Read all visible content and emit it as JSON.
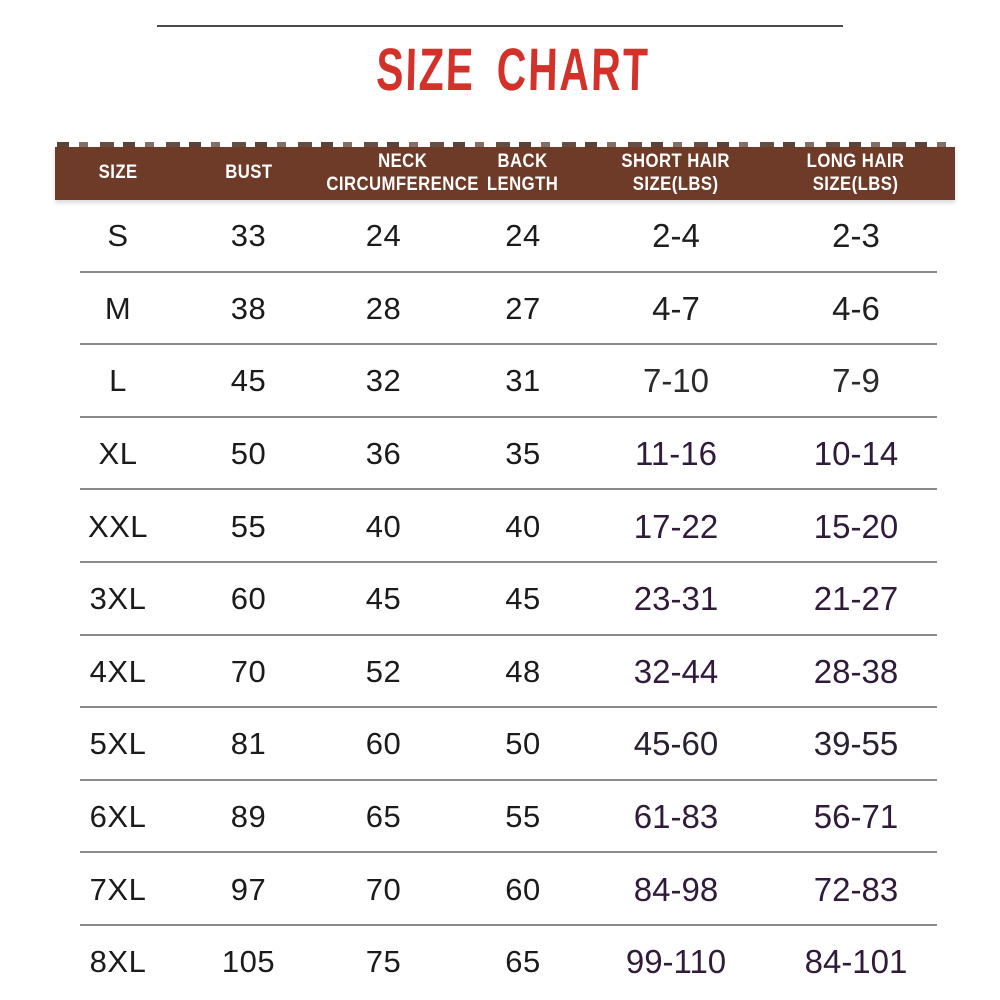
{
  "title": {
    "text": "SIZE CHART",
    "color": "#d2322a"
  },
  "decor": {
    "top_line_color": "#4c4c4c"
  },
  "table": {
    "header_bg": "#6e3b28",
    "header_text_color": "#ffffff",
    "separator_color": "#8b8b8b",
    "body_text_color": "#1b1b1b",
    "hair_purple_color": "#301b3a",
    "columns": [
      {
        "key": "size",
        "label": "SIZE"
      },
      {
        "key": "bust",
        "label": "BUST"
      },
      {
        "key": "neck",
        "label": "NECK\nCIRCUMFERENCE"
      },
      {
        "key": "back",
        "label": "BACK\nLENGTH"
      },
      {
        "key": "short_hair",
        "label": "SHORT HAIR\nSIZE(LBS)"
      },
      {
        "key": "long_hair",
        "label": "LONG HAIR\nSIZE(LBS)"
      }
    ],
    "rows": [
      {
        "size": "S",
        "bust": "33",
        "neck": "24",
        "back": "24",
        "short_hair": "2-4",
        "long_hair": "2-3",
        "hair_color": "#1f1f1f"
      },
      {
        "size": "M",
        "bust": "38",
        "neck": "28",
        "back": "27",
        "short_hair": "4-7",
        "long_hair": "4-6",
        "hair_color": "#1f1f1f"
      },
      {
        "size": "L",
        "bust": "45",
        "neck": "32",
        "back": "31",
        "short_hair": "7-10",
        "long_hair": "7-9",
        "hair_color": "#2b2b2b"
      },
      {
        "size": "XL",
        "bust": "50",
        "neck": "36",
        "back": "35",
        "short_hair": "11-16",
        "long_hair": "10-14",
        "hair_color": "#301b3a"
      },
      {
        "size": "XXL",
        "bust": "55",
        "neck": "40",
        "back": "40",
        "short_hair": "17-22",
        "long_hair": "15-20",
        "hair_color": "#301b3a"
      },
      {
        "size": "3XL",
        "bust": "60",
        "neck": "45",
        "back": "45",
        "short_hair": "23-31",
        "long_hair": "21-27",
        "hair_color": "#301b3a"
      },
      {
        "size": "4XL",
        "bust": "70",
        "neck": "52",
        "back": "48",
        "short_hair": "32-44",
        "long_hair": "28-38",
        "hair_color": "#301b3a"
      },
      {
        "size": "5XL",
        "bust": "81",
        "neck": "60",
        "back": "50",
        "short_hair": "45-60",
        "long_hair": "39-55",
        "hair_color": "#2a2130"
      },
      {
        "size": "6XL",
        "bust": "89",
        "neck": "65",
        "back": "55",
        "short_hair": "61-83",
        "long_hair": "56-71",
        "hair_color": "#301b3a"
      },
      {
        "size": "7XL",
        "bust": "97",
        "neck": "70",
        "back": "60",
        "short_hair": "84-98",
        "long_hair": "72-83",
        "hair_color": "#301b3a"
      },
      {
        "size": "8XL",
        "bust": "105",
        "neck": "75",
        "back": "65",
        "short_hair": "99-110",
        "long_hair": "84-101",
        "hair_color": "#301b3a"
      }
    ]
  },
  "chart_data": {
    "type": "table",
    "title": "SIZE CHART",
    "columns": [
      "SIZE",
      "BUST",
      "NECK CIRCUMFERENCE",
      "BACK LENGTH",
      "SHORT HAIR SIZE(LBS)",
      "LONG HAIR SIZE(LBS)"
    ],
    "rows": [
      [
        "S",
        "33",
        "24",
        "24",
        "2-4",
        "2-3"
      ],
      [
        "M",
        "38",
        "28",
        "27",
        "4-7",
        "4-6"
      ],
      [
        "L",
        "45",
        "32",
        "31",
        "7-10",
        "7-9"
      ],
      [
        "XL",
        "50",
        "36",
        "35",
        "11-16",
        "10-14"
      ],
      [
        "XXL",
        "55",
        "40",
        "40",
        "17-22",
        "15-20"
      ],
      [
        "3XL",
        "60",
        "45",
        "45",
        "23-31",
        "21-27"
      ],
      [
        "4XL",
        "70",
        "52",
        "48",
        "32-44",
        "28-38"
      ],
      [
        "5XL",
        "81",
        "60",
        "50",
        "45-60",
        "39-55"
      ],
      [
        "6XL",
        "89",
        "65",
        "55",
        "61-83",
        "56-71"
      ],
      [
        "7XL",
        "97",
        "70",
        "60",
        "84-98",
        "72-83"
      ],
      [
        "8XL",
        "105",
        "75",
        "65",
        "99-110",
        "84-101"
      ]
    ]
  }
}
